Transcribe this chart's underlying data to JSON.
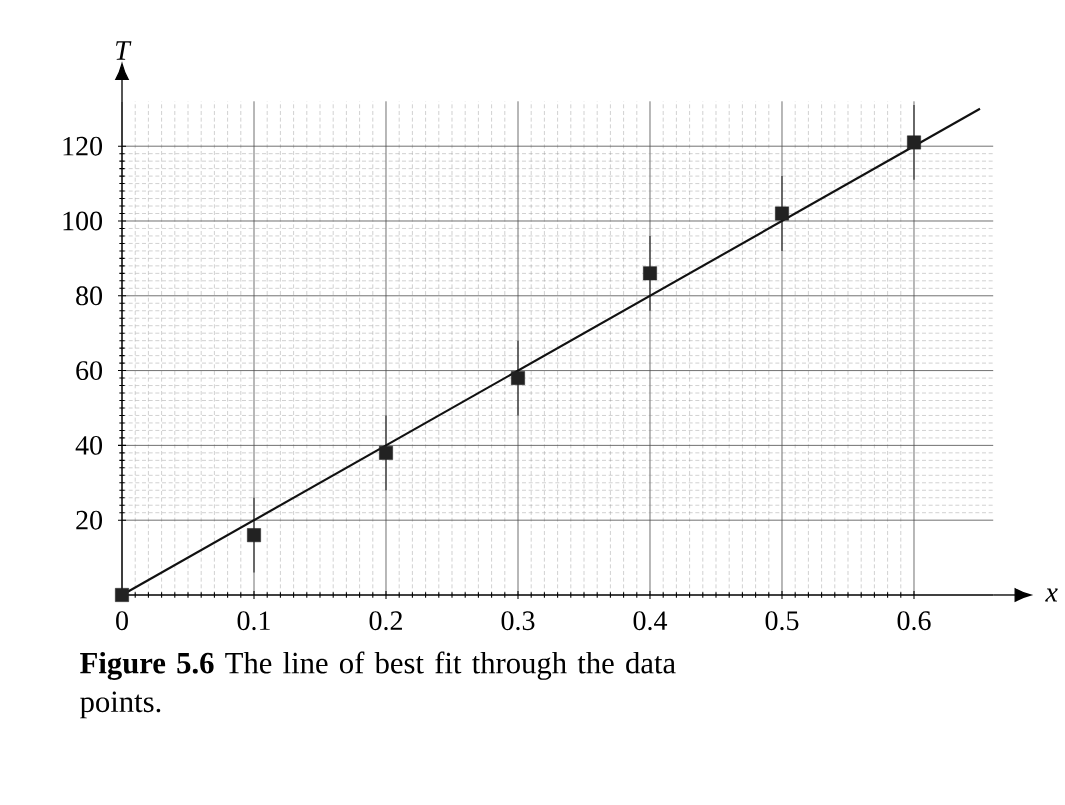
{
  "chart_data": {
    "type": "scatter",
    "xlabel": "x",
    "ylabel": "T",
    "xlim": [
      0,
      0.66
    ],
    "ylim": [
      0,
      132
    ],
    "xticks": [
      0,
      0.1,
      0.2,
      0.3,
      0.4,
      0.5,
      0.6
    ],
    "yticks": [
      20,
      40,
      60,
      80,
      100,
      120
    ],
    "grid": true,
    "marker": "square",
    "line_style": "solid",
    "x": [
      0,
      0.1,
      0.2,
      0.3,
      0.4,
      0.5,
      0.6
    ],
    "series": [
      {
        "color": "#222222",
        "values": [
          0,
          16,
          38,
          58,
          86,
          102,
          121
        ],
        "errors": [
          null,
          10,
          10,
          10,
          10,
          10,
          10
        ]
      },
      {
        "type": "line",
        "marker": "none",
        "color": "#111111",
        "x": [
          0,
          0.65
        ],
        "values": [
          0,
          130
        ]
      }
    ],
    "annotations": [
      "**Figure 5.6** The line of best fit through the data points."
    ]
  }
}
